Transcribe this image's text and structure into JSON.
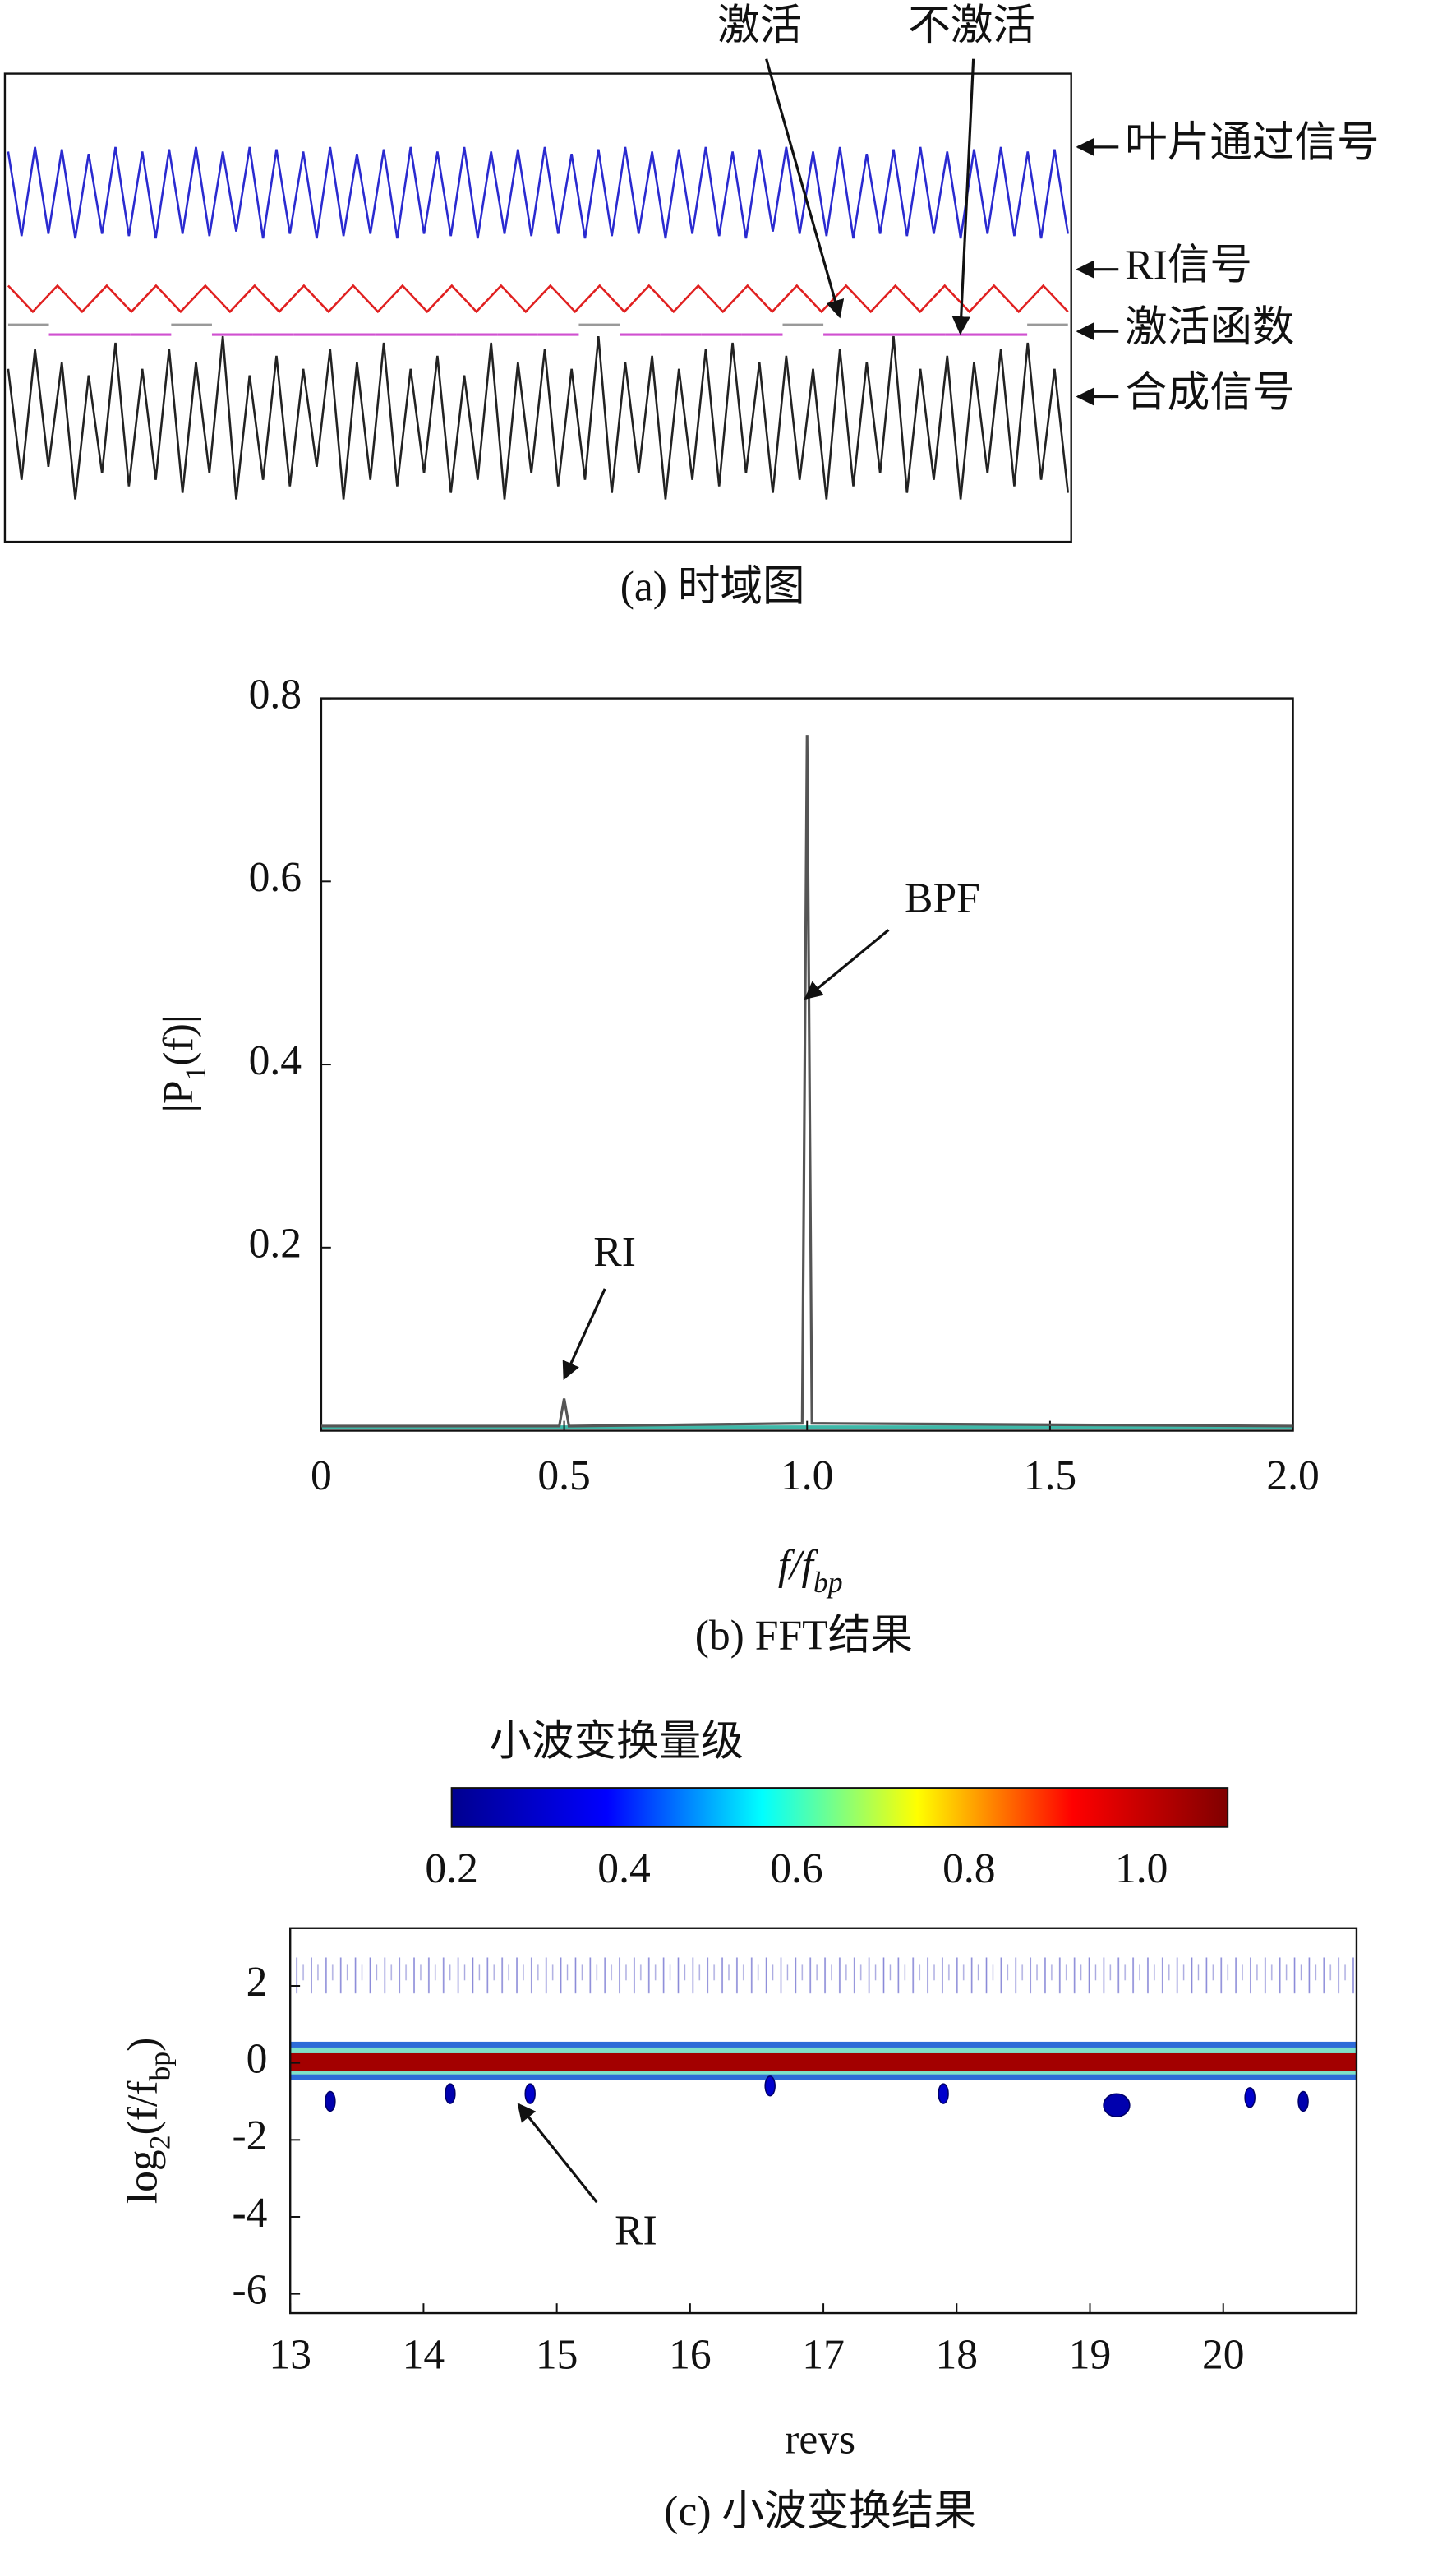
{
  "chart_data": [
    {
      "type": "line",
      "caption": "(a) 时域图",
      "annotations": [
        "激活",
        "不激活"
      ],
      "series": [
        {
          "name": "叶片通过信号",
          "color": "#2a2ad0",
          "values": [
            0.9,
            -0.95,
            1,
            -0.9,
            0.95,
            -1,
            0.85,
            -0.9,
            1,
            -0.95,
            0.9,
            -1,
            0.95,
            -0.9,
            1,
            -0.95,
            0.9,
            -0.85,
            1,
            -1,
            0.95,
            -0.9,
            0.9,
            -1,
            1,
            -0.95,
            0.85,
            -0.9,
            0.95,
            -1,
            1,
            -0.9,
            0.9,
            -0.95,
            1,
            -1,
            0.9,
            -0.9,
            0.95,
            -0.95,
            1,
            -0.9,
            0.85,
            -1,
            0.95,
            -0.95,
            1,
            -0.9,
            0.9,
            -1,
            0.95,
            -0.9,
            1,
            -0.95,
            0.9,
            -1,
            0.95,
            -0.85,
            1,
            -0.9,
            0.9,
            -0.95,
            1,
            -1,
            0.85,
            -0.9,
            0.95,
            -0.95,
            1,
            -0.9,
            0.9,
            -1,
            0.95,
            -0.9,
            1,
            -0.95,
            0.9,
            -1,
            0.95,
            -0.9
          ]
        },
        {
          "name": "RI信号",
          "color": "#e02020",
          "values": [
            1,
            -1,
            1,
            -1,
            1,
            -1,
            1,
            -1,
            1,
            -1,
            1,
            -1,
            1,
            -1,
            1,
            -1,
            1,
            -1,
            1,
            -1,
            1,
            -1,
            1,
            -1,
            1,
            -1,
            1,
            -1,
            1,
            -1,
            1,
            -1,
            1,
            -1,
            1,
            -1,
            1,
            -1,
            1,
            -1,
            1,
            -1,
            1,
            -1
          ]
        },
        {
          "name": "激活函数",
          "color": "#d050d0",
          "step": true,
          "values": [
            1,
            0,
            0,
            0,
            1,
            0,
            0,
            0,
            0,
            0,
            0,
            0,
            0,
            0,
            1,
            0,
            0,
            0,
            0,
            1,
            0,
            0,
            0,
            0,
            0,
            1
          ]
        },
        {
          "name": "合成信号",
          "color": "#222222",
          "values": [
            0.8,
            -0.9,
            1.1,
            -0.7,
            0.9,
            -1.2,
            0.7,
            -0.8,
            1.2,
            -1,
            0.8,
            -0.9,
            1.1,
            -1.1,
            0.9,
            -0.8,
            1.3,
            -1.2,
            0.7,
            -0.9,
            1,
            -1,
            0.8,
            -0.7,
            1.1,
            -1.2,
            0.9,
            -0.9,
            1.2,
            -1,
            0.8,
            -0.8,
            1,
            -1.1,
            0.7,
            -0.9,
            1.2,
            -1.2,
            0.9,
            -0.8,
            1.1,
            -1,
            0.8,
            -0.9,
            1.3,
            -1.1,
            0.9,
            -0.8,
            1,
            -1.2,
            0.8,
            -0.9,
            1.1,
            -1,
            1.2,
            -0.8,
            0.9,
            -1.1,
            1,
            -0.9,
            0.8,
            -1.2,
            1.1,
            -1,
            0.9,
            -0.8,
            1.3,
            -1.1,
            0.8,
            -0.9,
            1,
            -1.2,
            0.9,
            -0.8,
            1.1,
            -1,
            1.2,
            -0.9,
            0.8,
            -1.1
          ]
        }
      ]
    },
    {
      "type": "line",
      "caption": "(b) FFT结果",
      "xlabel": [
        "f/f",
        "bp"
      ],
      "ylabel": [
        "|P",
        "1",
        "(f)|"
      ],
      "annotations": [
        "RI",
        "BPF"
      ],
      "xlim": [
        0,
        2
      ],
      "ylim": [
        0,
        0.8
      ],
      "xticks": [
        0,
        0.5,
        {
          "value": 1,
          "label": "1.0"
        },
        1.5,
        {
          "value": 2,
          "label": "2.0"
        }
      ],
      "yticks": [
        0.2,
        0.4,
        0.6,
        0.8
      ],
      "x": [
        0,
        0.49,
        0.5,
        0.51,
        0.99,
        1.0,
        1.01,
        2.0
      ],
      "series": [
        {
          "color": "#555555",
          "values": [
            0.005,
            0.005,
            0.035,
            0.005,
            0.008,
            0.76,
            0.008,
            0.005
          ]
        }
      ]
    },
    {
      "type": "heatmap",
      "caption": "(c) 小波变换结果",
      "xlabel": "revs",
      "ylabel": [
        "log",
        "2",
        "(f/f",
        "bp",
        ")"
      ],
      "annotations": [
        "RI"
      ],
      "colorbar_label": "小波变换量级",
      "colormap": [
        "#00008f",
        "#0000ff",
        "#00ffff",
        "#ffff00",
        "#ff0000",
        "#800000"
      ],
      "clim": [
        0.2,
        1.1
      ],
      "cticks": [
        0.2,
        0.4,
        0.6,
        0.8,
        {
          "value": 1,
          "label": "1.0"
        }
      ],
      "xlim": [
        13,
        21
      ],
      "ylim": [
        -6.5,
        3.5
      ],
      "xticks": [
        13,
        14,
        15,
        16,
        17,
        18,
        19,
        20
      ],
      "yticks": [
        2,
        0,
        -2,
        -4,
        -6
      ],
      "ridge": {
        "y": 0,
        "value": 1.05
      },
      "points": {
        "x": [
          13.3,
          14.2,
          14.8,
          16.6,
          17.9,
          19.2,
          20.2,
          20.6
        ],
        "y": [
          -1,
          -0.8,
          -0.8,
          -0.6,
          -0.8,
          -1.1,
          -0.9,
          -1
        ],
        "values": [
          0.25,
          0.25,
          0.3,
          0.3,
          0.3,
          0.25,
          0.3,
          0.25
        ]
      }
    }
  ]
}
